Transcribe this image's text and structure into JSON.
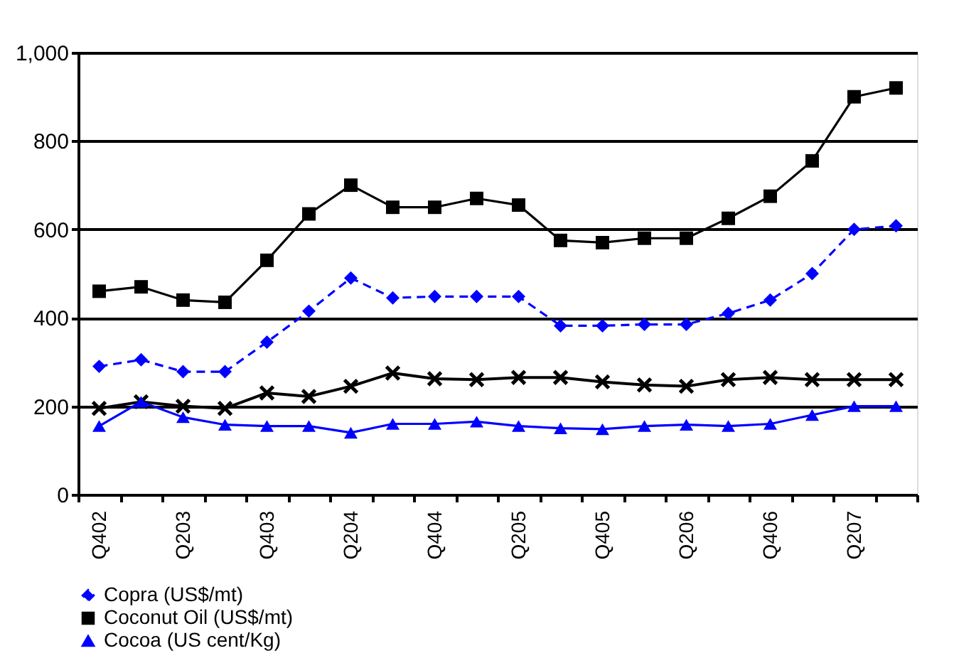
{
  "chart_data": {
    "type": "line",
    "categories": [
      "Q402",
      null,
      "Q203",
      null,
      "Q403",
      null,
      "Q204",
      null,
      "Q404",
      null,
      "Q205",
      null,
      "Q405",
      null,
      "Q206",
      null,
      "Q406",
      null,
      "Q207",
      null
    ],
    "series": [
      {
        "name": "Copra (US$/mt)",
        "color": "#0000ff",
        "marker": "diamond",
        "line_style": "dashed",
        "values": [
          290,
          305,
          278,
          278,
          345,
          415,
          490,
          445,
          448,
          448,
          448,
          382,
          382,
          385,
          385,
          410,
          440,
          500,
          600,
          608
        ]
      },
      {
        "name": "Coconut Oil (US$/mt)",
        "color": "#000000",
        "marker": "square",
        "line_style": "solid",
        "values": [
          460,
          470,
          440,
          435,
          530,
          635,
          700,
          650,
          650,
          670,
          655,
          575,
          570,
          580,
          580,
          625,
          675,
          755,
          900,
          920
        ]
      },
      {
        "color": "#000000",
        "marker": "cross",
        "line_style": "solid",
        "values": [
          195,
          210,
          200,
          195,
          230,
          222,
          245,
          275,
          262,
          260,
          265,
          265,
          255,
          248,
          245,
          260,
          265,
          260,
          260,
          260
        ]
      },
      {
        "name": "Cocoa (US cent/Kg)",
        "color": "#0000ff",
        "marker": "triangle",
        "line_style": "solid",
        "values": [
          155,
          210,
          175,
          158,
          155,
          155,
          140,
          160,
          160,
          165,
          155,
          150,
          148,
          155,
          158,
          155,
          160,
          180,
          200,
          200
        ]
      }
    ],
    "ylim": [
      0,
      1000
    ],
    "yticks": [
      0,
      200,
      400,
      600,
      800,
      {
        "value": 1000,
        "label": "1,000"
      }
    ],
    "grid": "y",
    "legend": "bottom"
  }
}
